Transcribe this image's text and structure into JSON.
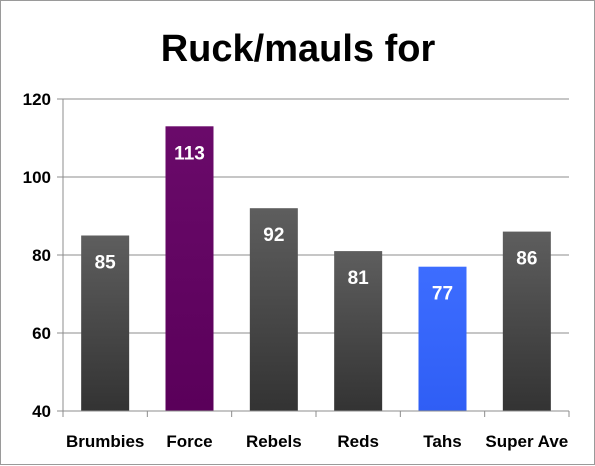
{
  "chart_data": {
    "type": "bar",
    "title": "Ruck/mauls for",
    "xlabel": "",
    "ylabel": "",
    "categories": [
      "Brumbies",
      "Force",
      "Rebels",
      "Reds",
      "Tahs",
      "Super Ave"
    ],
    "values": [
      85,
      113,
      92,
      81,
      77,
      86
    ],
    "ylim": [
      40,
      120
    ],
    "yticks": [
      40,
      60,
      80,
      100,
      120
    ],
    "grid": true,
    "legend": "none",
    "colors": {
      "default": "#4a4a4a",
      "Force": "#660066",
      "Tahs": "#3366ff"
    }
  }
}
